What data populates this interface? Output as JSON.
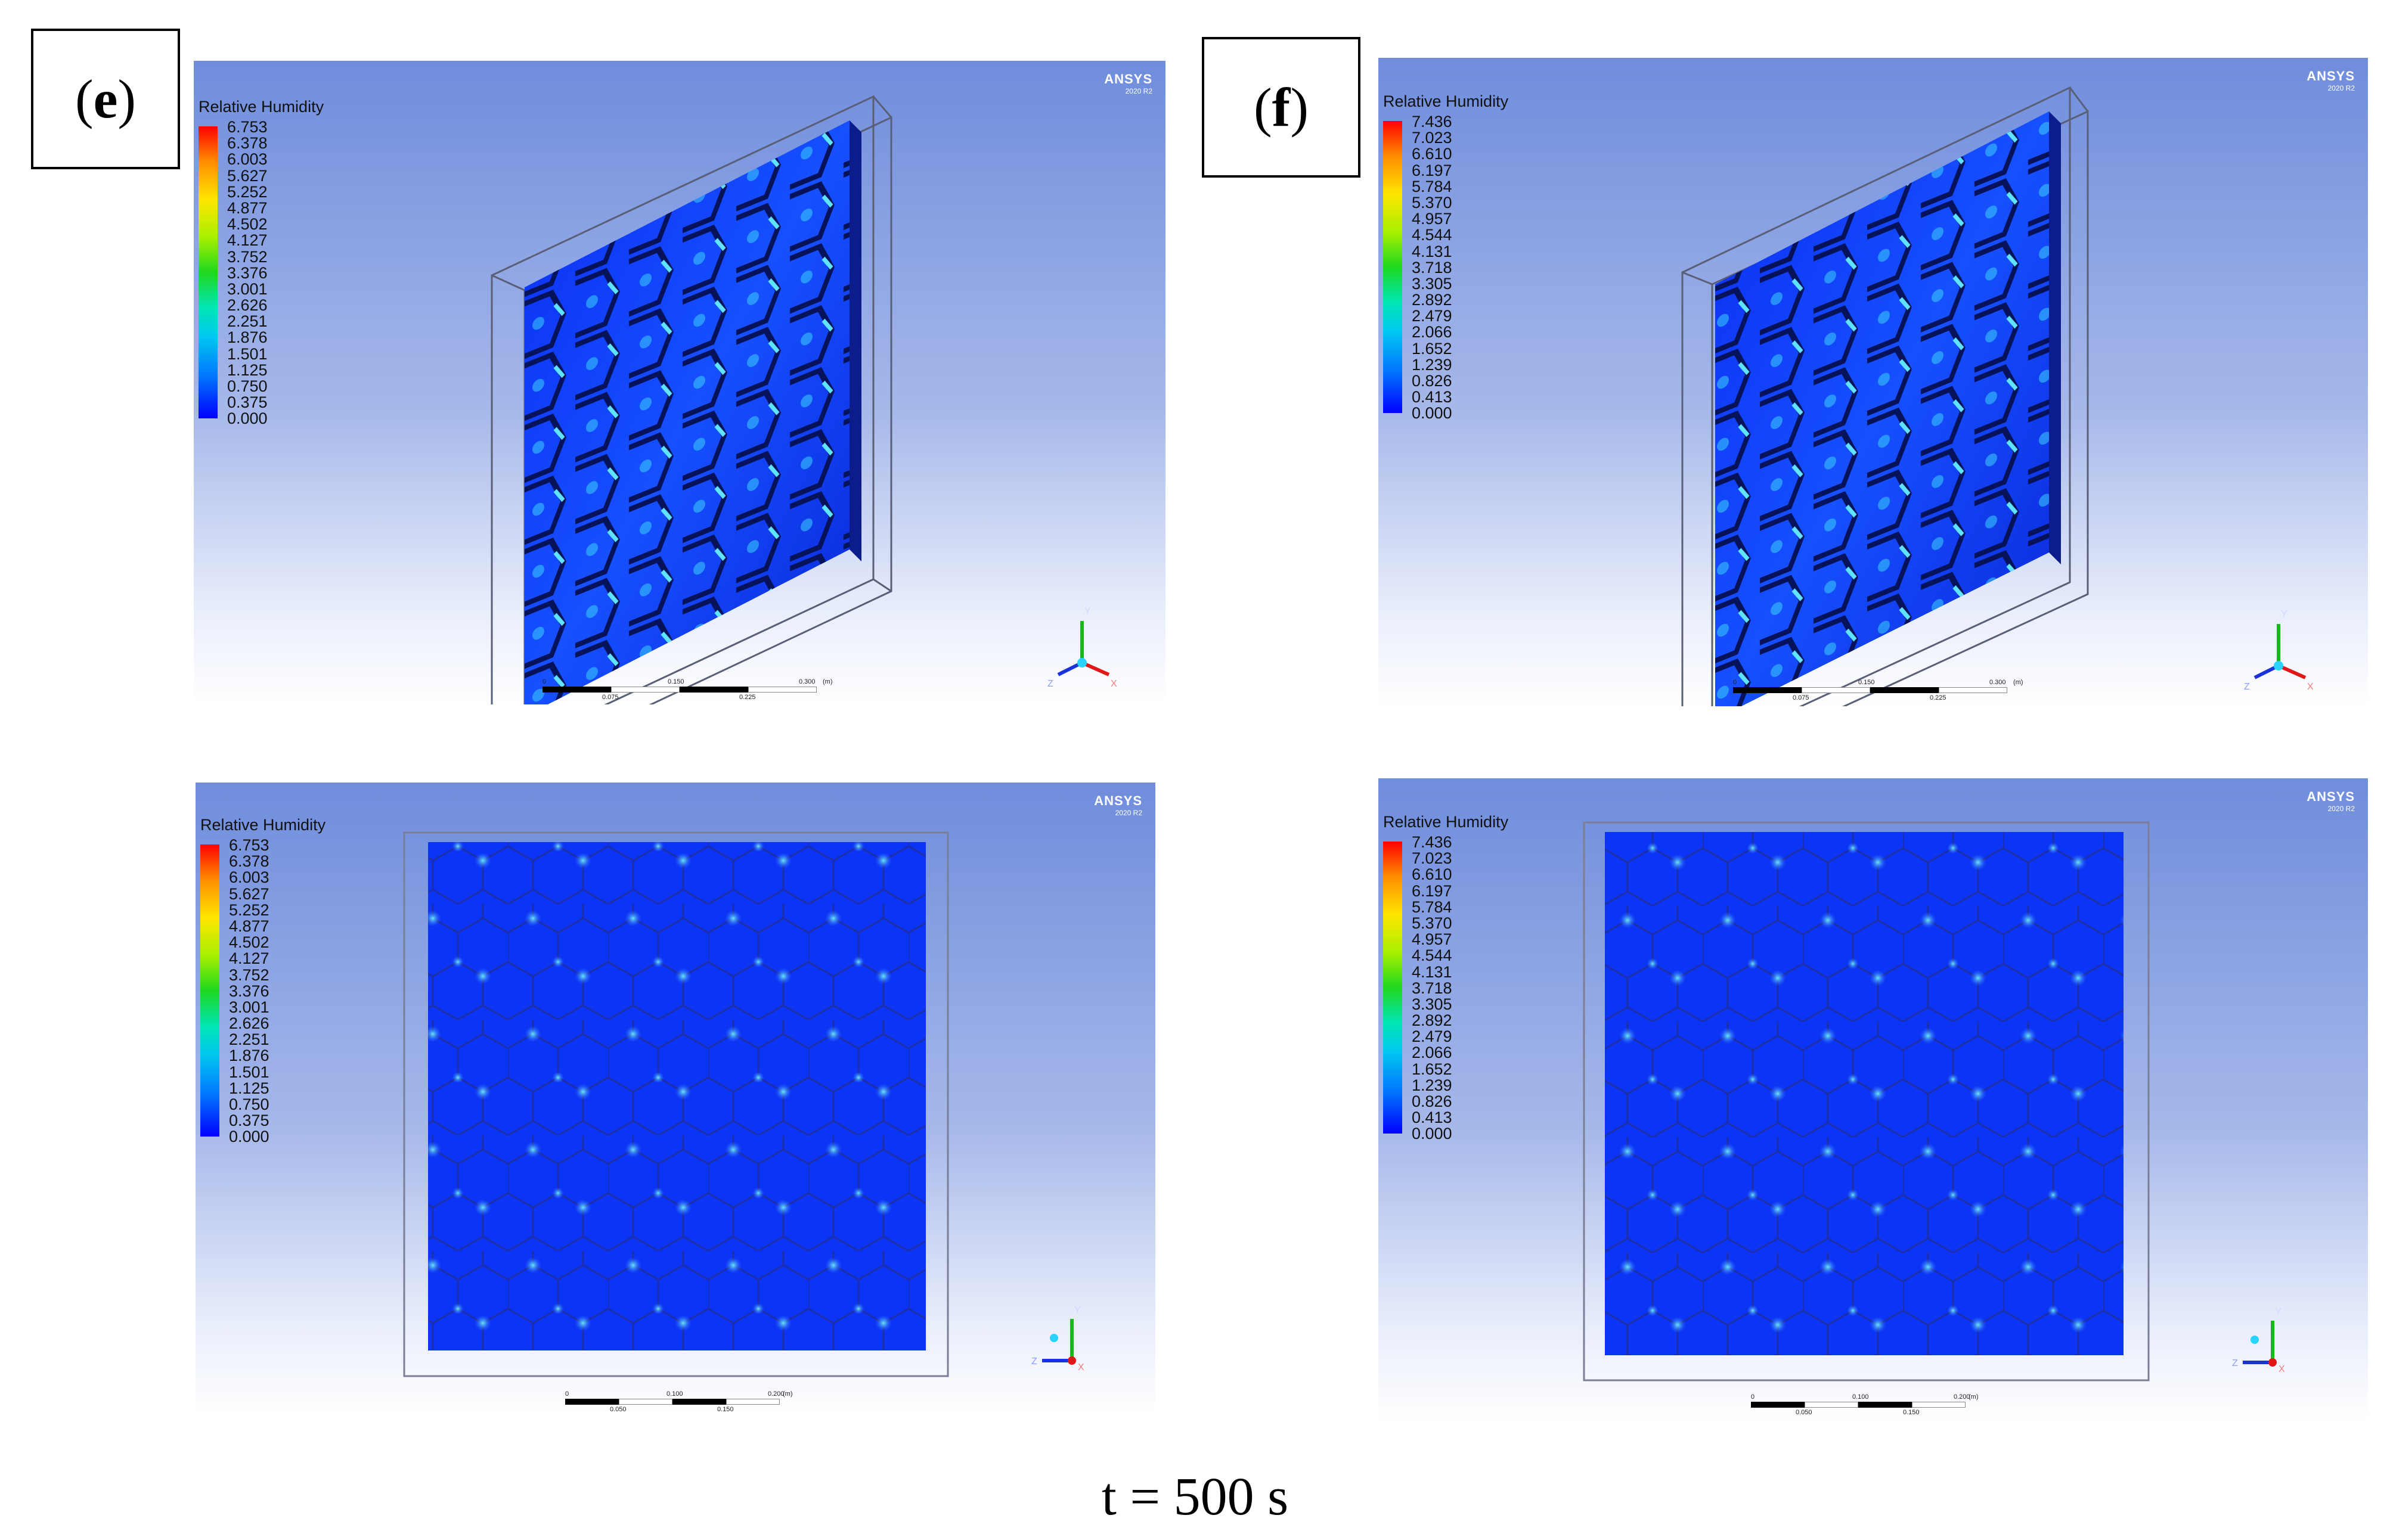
{
  "panels": [
    {
      "label_paren_open": "(",
      "label_letter": "e",
      "label_paren_close": ")"
    },
    {
      "label_paren_open": "(",
      "label_letter": "f",
      "label_paren_close": ")"
    }
  ],
  "legend_title": "Relative Humidity",
  "legend_e": [
    "6.753",
    "6.378",
    "6.003",
    "5.627",
    "5.252",
    "4.877",
    "4.502",
    "4.127",
    "3.752",
    "3.376",
    "3.001",
    "2.626",
    "2.251",
    "1.876",
    "1.501",
    "1.125",
    "0.750",
    "0.375",
    "0.000"
  ],
  "legend_f": [
    "7.436",
    "7.023",
    "6.610",
    "6.197",
    "5.784",
    "5.370",
    "4.957",
    "4.544",
    "4.131",
    "3.718",
    "3.305",
    "2.892",
    "2.479",
    "2.066",
    "1.652",
    "1.239",
    "0.826",
    "0.413",
    "0.000"
  ],
  "logo": {
    "brand": "ANSYS",
    "version": "2020 R2"
  },
  "scale_top": {
    "t0": "0",
    "t1": "0.150",
    "t2": "0.300",
    "unit": "(m)",
    "b1": "0.075",
    "b2": "0.225"
  },
  "scale_bottom": {
    "t0": "0",
    "t1": "0.100",
    "t2": "0.200",
    "unit": "(m)",
    "b1": "0.050",
    "b2": "0.150"
  },
  "axes": {
    "x": "X",
    "y": "Y",
    "z": "Z"
  },
  "caption": "t = 500 s",
  "colors": {
    "field_blue": "#0a2cf0",
    "highlight_cyan": "#33d6ff",
    "bg_top": "#6f8ddc"
  }
}
